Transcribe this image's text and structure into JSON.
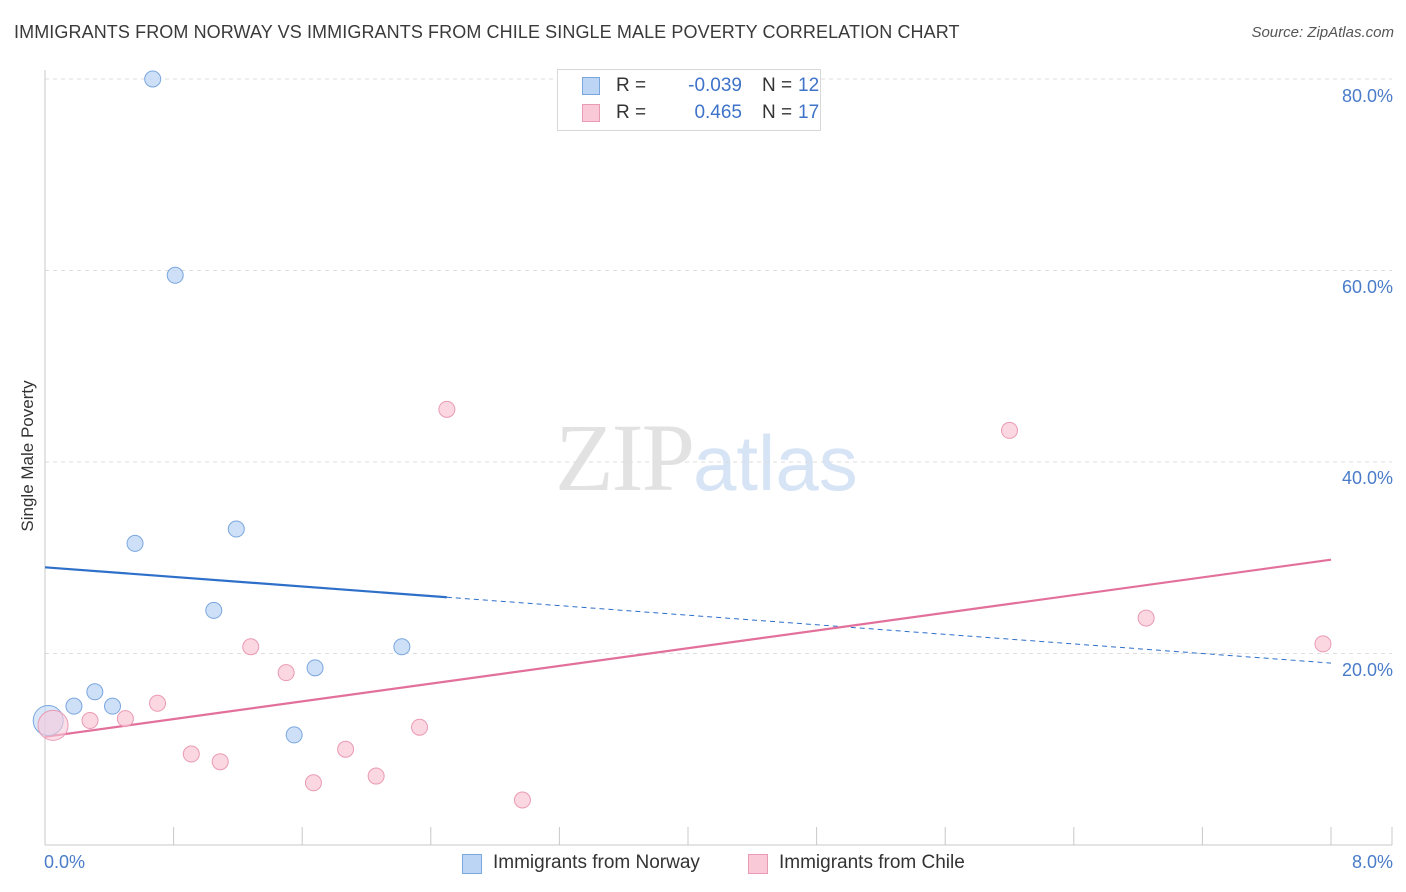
{
  "title": "IMMIGRANTS FROM NORWAY VS IMMIGRANTS FROM CHILE SINGLE MALE POVERTY CORRELATION CHART",
  "source": "Source: ZipAtlas.com",
  "watermark": {
    "zip": "ZIP",
    "atlas": "atlas"
  },
  "legend": {
    "rows": [
      {
        "label": "R =",
        "r": "-0.039",
        "n_label": "N =",
        "n": "12"
      },
      {
        "label": "R =",
        "r": "0.465",
        "n_label": "N =",
        "n": "17"
      }
    ]
  },
  "bottom_legend": [
    "Immigrants from Norway",
    "Immigrants from Chile"
  ],
  "colors": {
    "norway_fill": "#bcd5f5",
    "norway_stroke": "#7aa6de",
    "norway_line": "#2e6fc9",
    "chile_fill": "#f9c9d8",
    "chile_stroke": "#ea9ab4",
    "chile_line": "#e2709a",
    "grid": "#dddddd",
    "tick_text": "#4a7cc9"
  },
  "chart_data": {
    "type": "scatter",
    "title": "IMMIGRANTS FROM NORWAY VS IMMIGRANTS FROM CHILE SINGLE MALE POVERTY CORRELATION CHART",
    "xlabel": "",
    "ylabel": "Single Male Poverty",
    "xlim": [
      0,
      8
    ],
    "ylim": [
      0,
      82
    ],
    "x_tick_labels": [
      "0.0%",
      "8.0%"
    ],
    "y_ticks": [
      20,
      40,
      60,
      80
    ],
    "y_tick_labels": [
      "20.0%",
      "40.0%",
      "60.0%",
      "80.0%"
    ],
    "series": [
      {
        "name": "Immigrants from Norway",
        "r": -0.039,
        "n": 12,
        "points": [
          {
            "x": 0.02,
            "y": 13.0,
            "big": true
          },
          {
            "x": 0.18,
            "y": 14.5
          },
          {
            "x": 0.31,
            "y": 16.0
          },
          {
            "x": 0.42,
            "y": 14.5
          },
          {
            "x": 0.56,
            "y": 31.5
          },
          {
            "x": 0.67,
            "y": 80.0
          },
          {
            "x": 0.81,
            "y": 59.5
          },
          {
            "x": 1.05,
            "y": 24.5
          },
          {
            "x": 1.19,
            "y": 33.0
          },
          {
            "x": 1.55,
            "y": 11.5
          },
          {
            "x": 1.68,
            "y": 18.5
          },
          {
            "x": 2.22,
            "y": 20.7
          }
        ],
        "trend": {
          "x0": 0,
          "y0": 29.0,
          "x1": 8,
          "y1": 19.0,
          "solid_until_x": 2.5
        }
      },
      {
        "name": "Immigrants from Chile",
        "r": 0.465,
        "n": 17,
        "points": [
          {
            "x": 0.05,
            "y": 12.5,
            "big": true
          },
          {
            "x": 0.28,
            "y": 13.0
          },
          {
            "x": 0.5,
            "y": 13.2
          },
          {
            "x": 0.7,
            "y": 14.8
          },
          {
            "x": 0.91,
            "y": 9.5
          },
          {
            "x": 1.09,
            "y": 8.7
          },
          {
            "x": 1.28,
            "y": 20.7
          },
          {
            "x": 1.5,
            "y": 18.0
          },
          {
            "x": 1.67,
            "y": 6.5
          },
          {
            "x": 1.87,
            "y": 10.0
          },
          {
            "x": 2.06,
            "y": 7.2
          },
          {
            "x": 2.33,
            "y": 12.3
          },
          {
            "x": 2.5,
            "y": 45.5
          },
          {
            "x": 2.97,
            "y": 4.7
          },
          {
            "x": 6.0,
            "y": 43.3
          },
          {
            "x": 6.85,
            "y": 23.7
          },
          {
            "x": 7.95,
            "y": 21.0
          }
        ],
        "trend": {
          "x0": 0,
          "y0": 11.3,
          "x1": 8,
          "y1": 29.8,
          "solid_until_x": 8
        }
      }
    ]
  }
}
